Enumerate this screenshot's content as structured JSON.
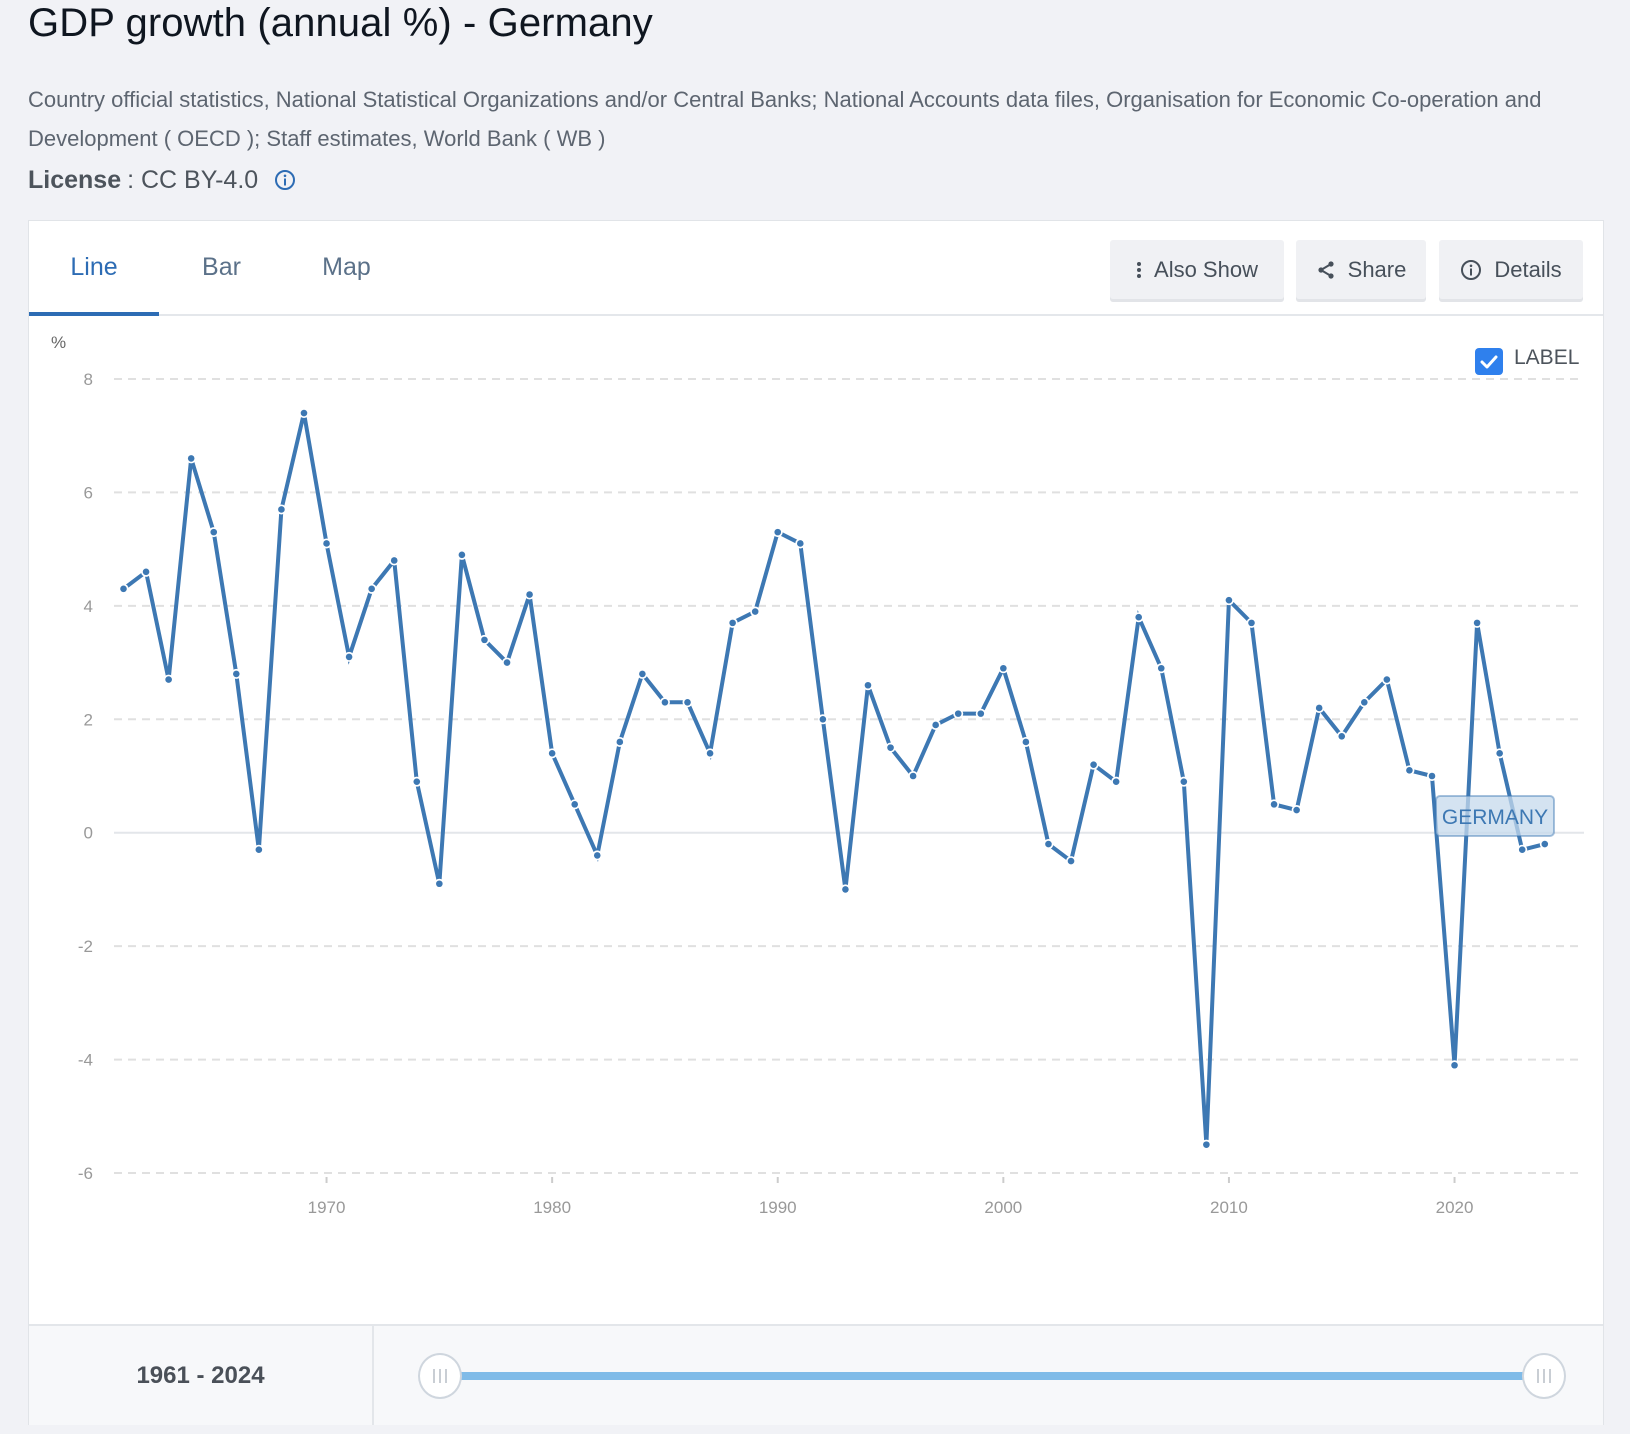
{
  "header": {
    "title": "GDP growth (annual %) - Germany",
    "source": "Country official statistics, National Statistical Organizations and/or Central Banks; National Accounts data files, Organisation for Economic Co-operation and Development ( OECD ); Staff estimates, World Bank ( WB )",
    "license_label": "License",
    "license_value": ": CC BY-4.0",
    "info_icon": "info-circle-icon"
  },
  "tabs": [
    {
      "label": "Line",
      "active": true
    },
    {
      "label": "Bar",
      "active": false
    },
    {
      "label": "Map",
      "active": false
    }
  ],
  "actions": {
    "also_show": {
      "label": "Also Show",
      "icon": "vertical-dots-icon"
    },
    "share": {
      "label": "Share",
      "icon": "share-icon"
    },
    "details": {
      "label": "Details",
      "icon": "info-circle-icon"
    }
  },
  "label_toggle": {
    "label": "LABEL",
    "checked": true
  },
  "colors": {
    "series": "#3d78b3",
    "accent": "#2d6cb4",
    "checkbox": "#2f80ed",
    "slider": "#7fbbe8"
  },
  "footer": {
    "range_text": "1961 - 2024",
    "range_start": 1961,
    "range_end": 2024
  },
  "chart_data": {
    "type": "line",
    "title": "GDP growth (annual %) - Germany",
    "ylabel": "%",
    "xlabel": "",
    "ylim": [
      -6,
      8
    ],
    "yticks": [
      8,
      6,
      4,
      2,
      0,
      -2,
      -4,
      -6
    ],
    "xlim": [
      1961,
      2024
    ],
    "xticks": [
      1970,
      1980,
      1990,
      2000,
      2010,
      2020
    ],
    "grid": true,
    "series": [
      {
        "name": "GERMANY",
        "x": [
          1961,
          1962,
          1963,
          1964,
          1965,
          1966,
          1967,
          1968,
          1969,
          1970,
          1971,
          1972,
          1973,
          1974,
          1975,
          1976,
          1977,
          1978,
          1979,
          1980,
          1981,
          1982,
          1983,
          1984,
          1985,
          1986,
          1987,
          1988,
          1989,
          1990,
          1991,
          1992,
          1993,
          1994,
          1995,
          1996,
          1997,
          1998,
          1999,
          2000,
          2001,
          2002,
          2003,
          2004,
          2005,
          2006,
          2007,
          2008,
          2009,
          2010,
          2011,
          2012,
          2013,
          2014,
          2015,
          2016,
          2017,
          2018,
          2019,
          2020,
          2021,
          2022,
          2023,
          2024
        ],
        "values": [
          4.3,
          4.6,
          2.7,
          6.6,
          5.3,
          2.8,
          -0.3,
          5.7,
          7.4,
          5.1,
          3.1,
          4.3,
          4.8,
          0.9,
          -0.9,
          4.9,
          3.4,
          3.0,
          4.2,
          1.4,
          0.5,
          -0.4,
          1.6,
          2.8,
          2.3,
          2.3,
          1.4,
          3.7,
          3.9,
          5.3,
          5.1,
          2.0,
          -1.0,
          2.6,
          1.5,
          1.0,
          1.9,
          2.1,
          2.1,
          2.9,
          1.6,
          -0.2,
          -0.5,
          1.2,
          0.9,
          3.8,
          2.9,
          0.9,
          -5.5,
          4.1,
          3.7,
          0.5,
          0.4,
          2.2,
          1.7,
          2.3,
          2.7,
          1.1,
          1.0,
          -4.1,
          3.7,
          1.4,
          -0.3,
          -0.2
        ]
      }
    ],
    "series_label": "GERMANY",
    "legend": "inline-label near end of series"
  }
}
